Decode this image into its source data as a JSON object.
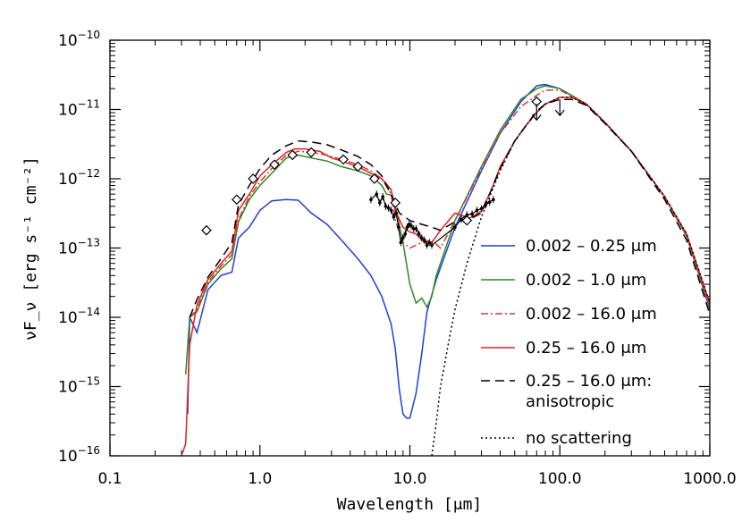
{
  "chart_data": {
    "type": "line",
    "x_scale": "log",
    "y_scale": "log",
    "xlim": [
      0.1,
      1000.0
    ],
    "ylim": [
      1e-16,
      1e-10
    ],
    "xlabel": "Wavelength [μm]",
    "ylabel": "νF_ν [erg s⁻¹ cm⁻²]",
    "x_ticks": [
      {
        "value": 0.1,
        "label": "0.1"
      },
      {
        "value": 1.0,
        "label": "1.0"
      },
      {
        "value": 10.0,
        "label": "10.0"
      },
      {
        "value": 100.0,
        "label": "100.0"
      },
      {
        "value": 1000.0,
        "label": "1000.0"
      }
    ],
    "y_ticks": [
      {
        "value": 1e-16,
        "base": "10",
        "exp": "−16"
      },
      {
        "value": 1e-15,
        "base": "10",
        "exp": "−15"
      },
      {
        "value": 1e-14,
        "base": "10",
        "exp": "−14"
      },
      {
        "value": 1e-13,
        "base": "10",
        "exp": "−13"
      },
      {
        "value": 1e-12,
        "base": "10",
        "exp": "−12"
      },
      {
        "value": 1e-11,
        "base": "10",
        "exp": "−11"
      },
      {
        "value": 1e-10,
        "base": "10",
        "exp": "−10"
      }
    ],
    "legend_position": "right",
    "series": [
      {
        "name": "0.002 – 0.25 μm",
        "color": "#1f3fdc",
        "dash": "solid",
        "points": [
          [
            0.33,
            4e-16
          ],
          [
            0.34,
            1e-14
          ],
          [
            0.38,
            6e-15
          ],
          [
            0.45,
            2.5e-14
          ],
          [
            0.55,
            4e-14
          ],
          [
            0.65,
            4.5e-14
          ],
          [
            0.72,
            1.4e-13
          ],
          [
            0.85,
            2e-13
          ],
          [
            1.0,
            3.5e-13
          ],
          [
            1.2,
            4.8e-13
          ],
          [
            1.5,
            5e-13
          ],
          [
            1.8,
            4.9e-13
          ],
          [
            2.2,
            3.2e-13
          ],
          [
            2.8,
            2.2e-13
          ],
          [
            3.5,
            1.3e-13
          ],
          [
            4.5,
            7e-14
          ],
          [
            5.5,
            4e-14
          ],
          [
            6.5,
            2e-14
          ],
          [
            7.5,
            8e-15
          ],
          [
            8.0,
            3.5e-15
          ],
          [
            8.5,
            9e-16
          ],
          [
            9.0,
            4e-16
          ],
          [
            9.5,
            3.5e-16
          ],
          [
            10.0,
            3.5e-16
          ],
          [
            11.0,
            8e-16
          ],
          [
            12.0,
            3e-15
          ],
          [
            13.0,
            1.2e-14
          ],
          [
            15.0,
            3.5e-14
          ],
          [
            20.0,
            2e-13
          ],
          [
            30.0,
            1.3e-12
          ],
          [
            40.0,
            4.5e-12
          ],
          [
            55.0,
            1.3e-11
          ],
          [
            70.0,
            2.2e-11
          ],
          [
            80.0,
            2.3e-11
          ],
          [
            100.0,
            2e-11
          ],
          [
            150.0,
            1.2e-11
          ],
          [
            200.0,
            6.5e-12
          ],
          [
            300.0,
            2.5e-12
          ],
          [
            500.0,
            5.5e-13
          ],
          [
            700.0,
            1.5e-13
          ],
          [
            1000.0,
            1.3e-14
          ]
        ]
      },
      {
        "name": "0.002 – 1.0 μm",
        "color": "#2e8b22",
        "dash": "solid",
        "points": [
          [
            0.32,
            1.5e-15
          ],
          [
            0.34,
            1e-14
          ],
          [
            0.38,
            1.2e-14
          ],
          [
            0.45,
            3e-14
          ],
          [
            0.55,
            5e-14
          ],
          [
            0.65,
            7e-14
          ],
          [
            0.72,
            2.4e-13
          ],
          [
            0.85,
            5e-13
          ],
          [
            1.0,
            8e-13
          ],
          [
            1.2,
            1.2e-12
          ],
          [
            1.5,
            2e-12
          ],
          [
            1.8,
            2.2e-12
          ],
          [
            2.2,
            2e-12
          ],
          [
            2.8,
            1.8e-12
          ],
          [
            3.5,
            1.5e-12
          ],
          [
            4.5,
            1.3e-12
          ],
          [
            5.5,
            1.1e-12
          ],
          [
            6.5,
            8e-13
          ],
          [
            7.0,
            6e-13
          ],
          [
            7.5,
            5.8e-13
          ],
          [
            8.0,
            4e-13
          ],
          [
            9.0,
            1.2e-13
          ],
          [
            10.0,
            3e-14
          ],
          [
            11.0,
            1.6e-14
          ],
          [
            12.0,
            1.9e-14
          ],
          [
            13.0,
            1.4e-14
          ],
          [
            14.0,
            2e-14
          ],
          [
            15.0,
            4e-14
          ],
          [
            20.0,
            2.5e-13
          ],
          [
            30.0,
            1.5e-12
          ],
          [
            40.0,
            5e-12
          ],
          [
            55.0,
            1.4e-11
          ],
          [
            70.0,
            2e-11
          ],
          [
            80.0,
            2.2e-11
          ],
          [
            100.0,
            2e-11
          ],
          [
            150.0,
            1.2e-11
          ],
          [
            200.0,
            6.5e-12
          ],
          [
            300.0,
            2.5e-12
          ],
          [
            500.0,
            5.5e-13
          ],
          [
            700.0,
            1.5e-13
          ],
          [
            1000.0,
            1.4e-14
          ]
        ]
      },
      {
        "name": "0.002 – 16.0 μm",
        "color": "#d23a3a",
        "dash": "dashdot",
        "points": [
          [
            0.34,
            1e-14
          ],
          [
            0.38,
            1.3e-14
          ],
          [
            0.45,
            3.2e-14
          ],
          [
            0.55,
            5.5e-14
          ],
          [
            0.65,
            8e-14
          ],
          [
            0.72,
            2.6e-13
          ],
          [
            0.85,
            5.5e-13
          ],
          [
            1.0,
            9e-13
          ],
          [
            1.2,
            1.4e-12
          ],
          [
            1.5,
            2.2e-12
          ],
          [
            1.8,
            2.5e-12
          ],
          [
            2.2,
            2.4e-12
          ],
          [
            2.8,
            2.2e-12
          ],
          [
            3.5,
            1.9e-12
          ],
          [
            4.5,
            1.6e-12
          ],
          [
            5.5,
            1.3e-12
          ],
          [
            6.5,
            1e-12
          ],
          [
            7.5,
            6e-13
          ],
          [
            8.0,
            2.5e-13
          ],
          [
            9.0,
            1.2e-13
          ],
          [
            10.0,
            1e-13
          ],
          [
            12.0,
            1.2e-13
          ],
          [
            14.0,
            1.3e-13
          ],
          [
            16.0,
            1e-13
          ],
          [
            20.0,
            2.5e-13
          ],
          [
            30.0,
            1.4e-12
          ],
          [
            40.0,
            4.5e-12
          ],
          [
            55.0,
            1.1e-11
          ],
          [
            70.0,
            1.6e-11
          ],
          [
            80.0,
            1.9e-11
          ],
          [
            100.0,
            1.9e-11
          ],
          [
            150.0,
            1.2e-11
          ],
          [
            200.0,
            6.5e-12
          ],
          [
            300.0,
            2.5e-12
          ],
          [
            500.0,
            5.5e-13
          ],
          [
            700.0,
            1.5e-13
          ],
          [
            1000.0,
            1.4e-14
          ]
        ]
      },
      {
        "name": "0.25 – 16.0 μm",
        "color": "#e81e1e",
        "dash": "solid",
        "points": [
          [
            0.3,
            1e-16
          ],
          [
            0.32,
            1.5e-16
          ],
          [
            0.34,
            4e-15
          ],
          [
            0.38,
            1.5e-14
          ],
          [
            0.45,
            3.5e-14
          ],
          [
            0.55,
            6e-14
          ],
          [
            0.65,
            9e-14
          ],
          [
            0.72,
            3.5e-13
          ],
          [
            0.85,
            6e-13
          ],
          [
            1.0,
            1.1e-12
          ],
          [
            1.2,
            1.6e-12
          ],
          [
            1.5,
            2.4e-12
          ],
          [
            1.7,
            2.7e-12
          ],
          [
            2.0,
            2.7e-12
          ],
          [
            2.5,
            2.5e-12
          ],
          [
            3.0,
            2e-12
          ],
          [
            3.5,
            1.8e-12
          ],
          [
            4.5,
            1.5e-12
          ],
          [
            5.5,
            1.2e-12
          ],
          [
            6.5,
            1e-12
          ],
          [
            7.5,
            7e-13
          ],
          [
            8.0,
            3.5e-13
          ],
          [
            9.0,
            2e-13
          ],
          [
            10.0,
            1.7e-13
          ],
          [
            11.0,
            1.6e-13
          ],
          [
            12.0,
            1.3e-13
          ],
          [
            14.0,
            1.2e-13
          ],
          [
            16.0,
            1.8e-13
          ],
          [
            20.0,
            3.2e-13
          ],
          [
            25.0,
            2.7e-13
          ],
          [
            30.0,
            3.4e-13
          ],
          [
            35.0,
            7e-13
          ],
          [
            40.0,
            1.5e-12
          ],
          [
            50.0,
            3.5e-12
          ],
          [
            60.0,
            6e-12
          ],
          [
            70.0,
            9e-12
          ],
          [
            80.0,
            1.2e-11
          ],
          [
            100.0,
            1.5e-11
          ],
          [
            120.0,
            1.5e-11
          ],
          [
            150.0,
            1.2e-11
          ],
          [
            200.0,
            6.5e-12
          ],
          [
            300.0,
            2.5e-12
          ],
          [
            500.0,
            5.5e-13
          ],
          [
            700.0,
            1.6e-13
          ],
          [
            1000.0,
            1.6e-14
          ]
        ]
      },
      {
        "name": "0.25 – 16.0 μm: anisotropic",
        "color": "#000000",
        "dash": "dashed",
        "points": [
          [
            0.34,
            1e-14
          ],
          [
            0.38,
            1.8e-14
          ],
          [
            0.45,
            3.8e-14
          ],
          [
            0.55,
            7e-14
          ],
          [
            0.65,
            1.2e-13
          ],
          [
            0.72,
            4.2e-13
          ],
          [
            0.85,
            8e-13
          ],
          [
            1.0,
            1.4e-12
          ],
          [
            1.2,
            2.2e-12
          ],
          [
            1.5,
            3e-12
          ],
          [
            1.8,
            3.5e-12
          ],
          [
            2.2,
            3.4e-12
          ],
          [
            2.8,
            3.1e-12
          ],
          [
            3.5,
            2.6e-12
          ],
          [
            4.5,
            2.1e-12
          ],
          [
            5.5,
            1.6e-12
          ],
          [
            6.5,
            1.1e-12
          ],
          [
            7.5,
            6e-13
          ],
          [
            8.5,
            3.2e-13
          ],
          [
            10.0,
            2.5e-13
          ],
          [
            12.0,
            2.2e-13
          ],
          [
            14.0,
            2e-13
          ],
          [
            16.0,
            1.8e-13
          ],
          [
            20.0,
            2.4e-13
          ],
          [
            25.0,
            2.6e-13
          ],
          [
            30.0,
            3.2e-13
          ],
          [
            35.0,
            7e-13
          ],
          [
            40.0,
            1.4e-12
          ],
          [
            50.0,
            3.5e-12
          ],
          [
            60.0,
            6e-12
          ],
          [
            70.0,
            9.5e-12
          ],
          [
            80.0,
            1.2e-11
          ],
          [
            100.0,
            1.4e-11
          ],
          [
            120.0,
            1.4e-11
          ],
          [
            150.0,
            1.15e-11
          ],
          [
            200.0,
            6.3e-12
          ],
          [
            300.0,
            2.5e-12
          ],
          [
            500.0,
            5e-13
          ],
          [
            700.0,
            1.3e-13
          ],
          [
            1000.0,
            1.1e-14
          ]
        ]
      },
      {
        "name": "no scattering",
        "color": "#000000",
        "dash": "dotted",
        "points": [
          [
            14.0,
            1e-16
          ],
          [
            15.0,
            3e-16
          ],
          [
            16.0,
            1e-15
          ],
          [
            18.0,
            4e-15
          ],
          [
            20.0,
            1.3e-14
          ],
          [
            24.0,
            6e-14
          ],
          [
            30.0,
            2.8e-13
          ],
          [
            40.0,
            1.3e-12
          ],
          [
            50.0,
            3.5e-12
          ],
          [
            60.0,
            6e-12
          ],
          [
            70.0,
            9e-12
          ],
          [
            80.0,
            1.2e-11
          ],
          [
            100.0,
            1.5e-11
          ],
          [
            120.0,
            1.5e-11
          ],
          [
            150.0,
            1.2e-11
          ],
          [
            200.0,
            6.5e-12
          ],
          [
            300.0,
            2.5e-12
          ],
          [
            500.0,
            5.5e-13
          ],
          [
            700.0,
            1.6e-13
          ],
          [
            1000.0,
            1.6e-14
          ]
        ]
      }
    ],
    "observations": {
      "photometry_diamonds": [
        [
          0.44,
          1.8e-13
        ],
        [
          0.7,
          5e-13
        ],
        [
          0.9,
          1e-12
        ],
        [
          1.25,
          1.6e-12
        ],
        [
          1.65,
          2.2e-12
        ],
        [
          2.2,
          2.4e-12
        ],
        [
          3.6,
          1.9e-12
        ],
        [
          4.5,
          1.5e-12
        ],
        [
          5.8,
          1e-12
        ],
        [
          8.0,
          4.5e-13
        ],
        [
          24.0,
          2.5e-13
        ],
        [
          70.0,
          1.3e-11
        ]
      ],
      "upper_limits": [
        [
          70.0,
          1.2e-11
        ],
        [
          100.0,
          1.4e-11
        ]
      ],
      "spectrum": [
        [
          5.5,
          5e-13
        ],
        [
          6.0,
          6e-13
        ],
        [
          6.3,
          4.5e-13
        ],
        [
          6.6,
          5.5e-13
        ],
        [
          6.9,
          4e-13
        ],
        [
          7.2,
          3.8e-13
        ],
        [
          7.5,
          3.5e-13
        ],
        [
          7.8,
          2.8e-13
        ],
        [
          8.1,
          3.2e-13
        ],
        [
          8.4,
          2e-13
        ],
        [
          8.7,
          1.2e-13
        ],
        [
          9.0,
          1.4e-13
        ],
        [
          9.3,
          1.6e-13
        ],
        [
          9.6,
          2e-13
        ],
        [
          9.9,
          2.2e-13
        ],
        [
          10.2,
          2.1e-13
        ],
        [
          10.6,
          1.9e-13
        ],
        [
          11.0,
          1.9e-13
        ],
        [
          11.5,
          1.6e-13
        ],
        [
          12.0,
          1.4e-13
        ],
        [
          12.5,
          1.3e-13
        ],
        [
          13.0,
          1.1e-13
        ],
        [
          13.5,
          1.2e-13
        ],
        [
          14.0,
          1.1e-13
        ],
        [
          20.0,
          2e-13
        ],
        [
          22.0,
          2.6e-13
        ],
        [
          24.0,
          3e-13
        ],
        [
          26.0,
          3.1e-13
        ],
        [
          28.0,
          3.5e-13
        ],
        [
          30.0,
          3.7e-13
        ],
        [
          32.0,
          4.2e-13
        ],
        [
          34.0,
          4.6e-13
        ],
        [
          36.0,
          5e-13
        ]
      ]
    }
  },
  "legend": {
    "items": [
      {
        "label": "0.002 – 0.25 μm",
        "label2": "",
        "color": "#1f3fdc",
        "dash": "solid"
      },
      {
        "label": "0.002 – 1.0 μm",
        "label2": "",
        "color": "#2e8b22",
        "dash": "solid"
      },
      {
        "label": "0.002 – 16.0 μm",
        "label2": "",
        "color": "#d23a3a",
        "dash": "dashdot"
      },
      {
        "label": "0.25 – 16.0 μm",
        "label2": "",
        "color": "#e81e1e",
        "dash": "solid"
      },
      {
        "label": "0.25 – 16.0 μm:",
        "label2": "anisotropic",
        "color": "#000000",
        "dash": "dashed"
      },
      {
        "label": "no scattering",
        "label2": "",
        "color": "#000000",
        "dash": "dotted"
      }
    ]
  }
}
